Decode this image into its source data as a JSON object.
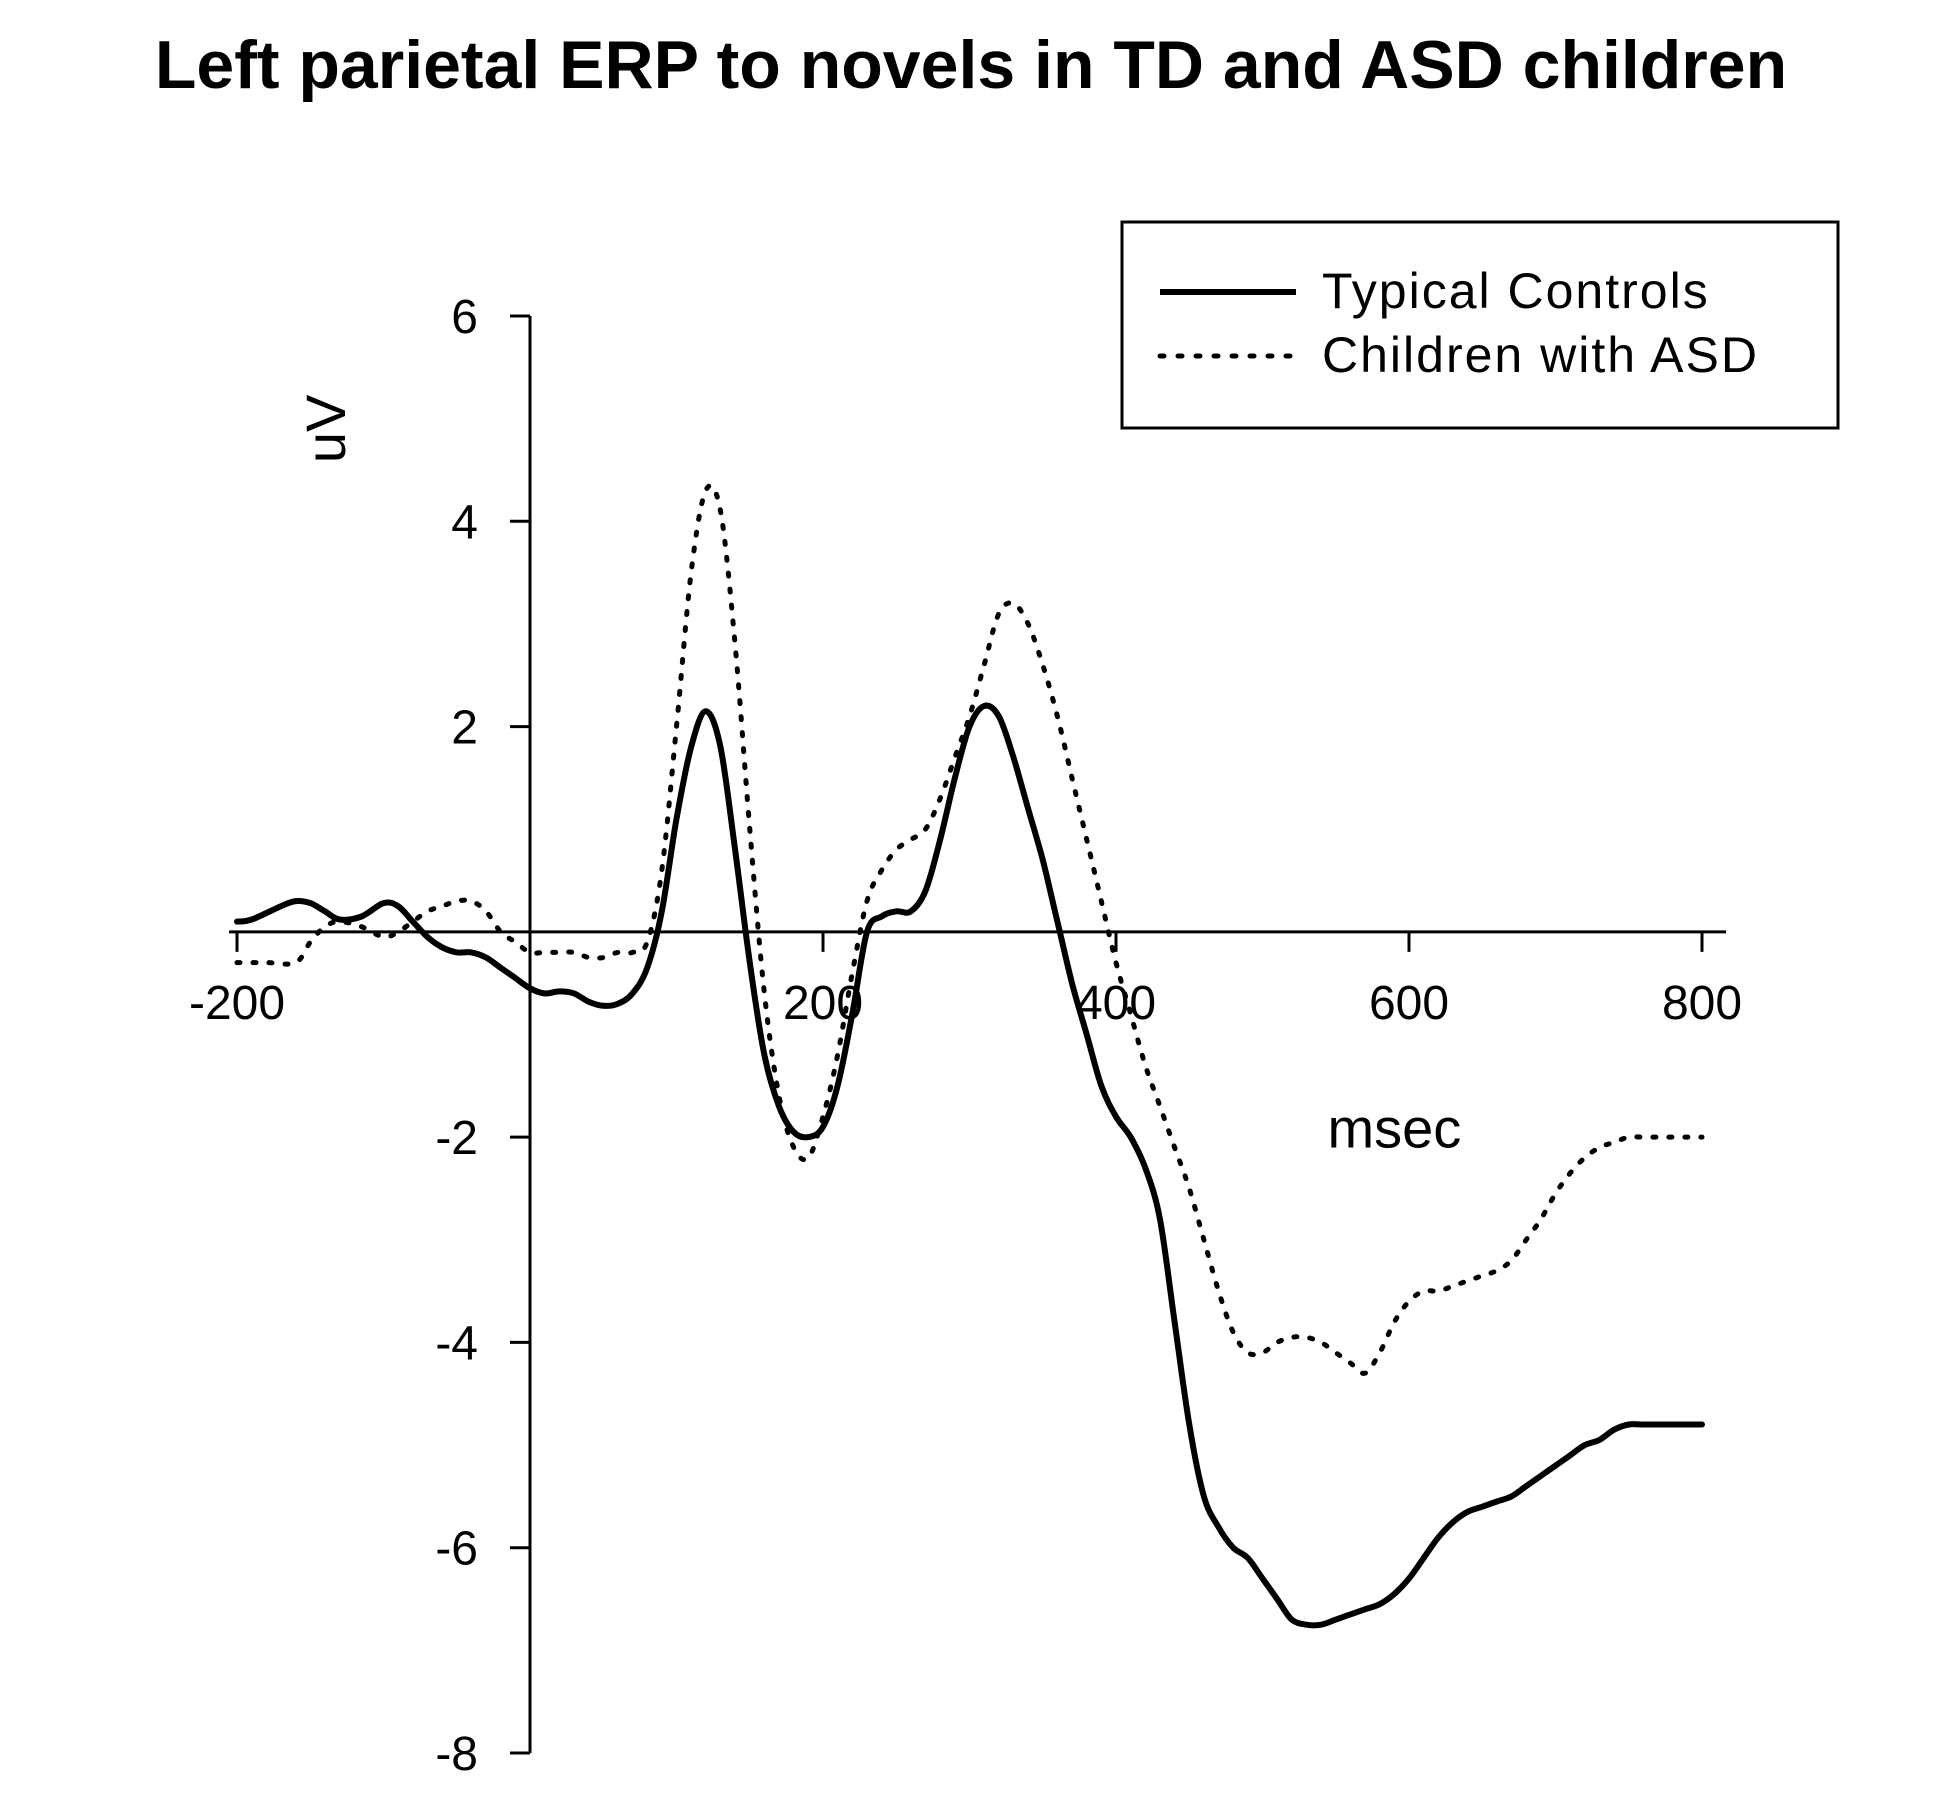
{
  "chart_data": {
    "type": "line",
    "title": "Left parietal ERP to novels in TD and ASD children",
    "xlabel": "msec",
    "ylabel": "uV",
    "xlim": [
      -200,
      800
    ],
    "ylim": [
      -8,
      6
    ],
    "x_ticks": [
      -200,
      200,
      400,
      600,
      800
    ],
    "y_ticks": [
      -8,
      -6,
      -4,
      -2,
      2,
      4,
      6
    ],
    "grid": false,
    "legend": "top-right",
    "series": [
      {
        "name": "Typical Controls",
        "style": "solid",
        "color": "#000000",
        "x": [
          -200,
          -190,
          -170,
          -160,
          -150,
          -140,
          -130,
          -115,
          -100,
          -90,
          -80,
          -70,
          -60,
          -50,
          -40,
          -30,
          -20,
          -10,
          0,
          10,
          20,
          30,
          40,
          50,
          60,
          70,
          80,
          90,
          100,
          110,
          120,
          130,
          140,
          150,
          160,
          170,
          180,
          190,
          200,
          210,
          220,
          230,
          240,
          250,
          260,
          270,
          280,
          290,
          300,
          310,
          320,
          330,
          340,
          350,
          360,
          370,
          380,
          390,
          400,
          410,
          420,
          430,
          440,
          450,
          460,
          470,
          480,
          490,
          500,
          510,
          520,
          530,
          540,
          550,
          560,
          570,
          580,
          590,
          600,
          610,
          620,
          630,
          640,
          650,
          660,
          670,
          680,
          690,
          700,
          710,
          720,
          730,
          740,
          750,
          760,
          770,
          780,
          790,
          800
        ],
        "y": [
          0.1,
          0.12,
          0.25,
          0.3,
          0.28,
          0.2,
          0.12,
          0.15,
          0.28,
          0.25,
          0.1,
          -0.05,
          -0.15,
          -0.2,
          -0.2,
          -0.25,
          -0.35,
          -0.45,
          -0.55,
          -0.6,
          -0.58,
          -0.6,
          -0.68,
          -0.72,
          -0.7,
          -0.6,
          -0.35,
          0.2,
          1.1,
          1.8,
          2.15,
          1.8,
          0.8,
          -0.3,
          -1.2,
          -1.7,
          -1.95,
          -2.0,
          -1.9,
          -1.5,
          -0.8,
          0.0,
          0.15,
          0.2,
          0.2,
          0.4,
          0.9,
          1.5,
          2.0,
          2.2,
          2.1,
          1.7,
          1.2,
          0.7,
          0.1,
          -0.5,
          -1.0,
          -1.5,
          -1.8,
          -2.0,
          -2.3,
          -2.8,
          -3.8,
          -4.8,
          -5.5,
          -5.8,
          -6.0,
          -6.1,
          -6.3,
          -6.5,
          -6.7,
          -6.75,
          -6.75,
          -6.7,
          -6.65,
          -6.6,
          -6.55,
          -6.45,
          -6.3,
          -6.1,
          -5.9,
          -5.75,
          -5.65,
          -5.6,
          -5.55,
          -5.5,
          -5.4,
          -5.3,
          -5.2,
          -5.1,
          -5.0,
          -4.95,
          -4.85,
          -4.8,
          -4.8,
          -4.8,
          -4.8,
          -4.8,
          -4.8
        ]
      },
      {
        "name": "Children with ASD",
        "style": "dotted",
        "color": "#000000",
        "x": [
          -200,
          -180,
          -160,
          -150,
          -140,
          -130,
          -115,
          -100,
          -90,
          -80,
          -70,
          -60,
          -50,
          -40,
          -30,
          -20,
          -10,
          0,
          10,
          20,
          30,
          40,
          50,
          60,
          70,
          80,
          90,
          100,
          110,
          120,
          130,
          140,
          150,
          160,
          170,
          180,
          190,
          200,
          210,
          220,
          230,
          240,
          250,
          260,
          270,
          280,
          290,
          300,
          310,
          320,
          330,
          340,
          350,
          360,
          370,
          380,
          390,
          400,
          410,
          420,
          430,
          440,
          450,
          460,
          470,
          480,
          490,
          500,
          510,
          520,
          530,
          540,
          550,
          560,
          570,
          580,
          590,
          600,
          610,
          620,
          630,
          640,
          650,
          660,
          670,
          680,
          690,
          700,
          710,
          720,
          730,
          740,
          750,
          760,
          770,
          780,
          790,
          800
        ],
        "y": [
          -0.3,
          -0.3,
          -0.3,
          -0.1,
          0.05,
          0.1,
          0.05,
          -0.05,
          0.0,
          0.1,
          0.2,
          0.25,
          0.3,
          0.3,
          0.2,
          0.0,
          -0.1,
          -0.2,
          -0.2,
          -0.2,
          -0.2,
          -0.25,
          -0.25,
          -0.2,
          -0.2,
          -0.1,
          0.6,
          2.0,
          3.5,
          4.3,
          4.1,
          2.8,
          1.0,
          -0.6,
          -1.6,
          -2.1,
          -2.2,
          -1.8,
          -1.2,
          -0.4,
          0.3,
          0.6,
          0.8,
          0.9,
          1.0,
          1.3,
          1.7,
          2.1,
          2.6,
          3.1,
          3.2,
          3.0,
          2.6,
          2.1,
          1.5,
          0.9,
          0.3,
          -0.3,
          -0.8,
          -1.3,
          -1.7,
          -2.1,
          -2.5,
          -3.0,
          -3.5,
          -3.9,
          -4.1,
          -4.1,
          -4.0,
          -3.95,
          -3.95,
          -4.0,
          -4.1,
          -4.2,
          -4.3,
          -4.1,
          -3.8,
          -3.6,
          -3.5,
          -3.5,
          -3.45,
          -3.4,
          -3.35,
          -3.3,
          -3.2,
          -3.0,
          -2.8,
          -2.55,
          -2.35,
          -2.2,
          -2.1,
          -2.05,
          -2.0,
          -2.0,
          -2.0,
          -2.0,
          -2.0,
          -2.0
        ]
      }
    ]
  }
}
